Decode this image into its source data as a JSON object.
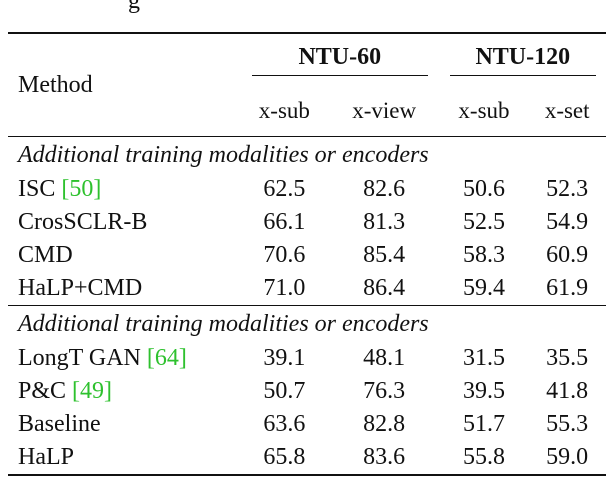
{
  "caption_fragment": "g",
  "table": {
    "method_header": "Method",
    "datasets": [
      {
        "name": "NTU-60",
        "columns": [
          "x-sub",
          "x-view"
        ]
      },
      {
        "name": "NTU-120",
        "columns": [
          "x-sub",
          "x-set"
        ]
      }
    ],
    "groups": [
      {
        "title": "Additional training modalities or encoders",
        "rows": [
          {
            "method": "ISC ",
            "ref": "[50]",
            "values": [
              "62.5",
              "82.6",
              "50.6",
              "52.3"
            ],
            "bold": false
          },
          {
            "method": "CrosSCLR-B",
            "ref": "",
            "values": [
              "66.1",
              "81.3",
              "52.5",
              "54.9"
            ],
            "bold": false
          },
          {
            "method": "CMD",
            "ref": "",
            "values": [
              "70.6",
              "85.4",
              "58.3",
              "60.9"
            ],
            "bold": false
          },
          {
            "method": "HaLP+CMD",
            "ref": "",
            "values": [
              "71.0",
              "86.4",
              "59.4",
              "61.9"
            ],
            "bold": true
          }
        ]
      },
      {
        "title": "Additional training modalities or encoders",
        "rows": [
          {
            "method": "LongT GAN ",
            "ref": "[64]",
            "values": [
              "39.1",
              "48.1",
              "31.5",
              "35.5"
            ],
            "bold": false
          },
          {
            "method": "P&C ",
            "ref": "[49]",
            "values": [
              "50.7",
              "76.3",
              "39.5",
              "41.8"
            ],
            "bold": false
          },
          {
            "method": "Baseline",
            "ref": "",
            "values": [
              "63.6",
              "82.8",
              "51.7",
              "55.3"
            ],
            "bold": false
          },
          {
            "method": "HaLP",
            "ref": "",
            "values": [
              "65.8",
              "83.6",
              "55.8",
              "59.0"
            ],
            "bold": true
          }
        ]
      }
    ]
  }
}
